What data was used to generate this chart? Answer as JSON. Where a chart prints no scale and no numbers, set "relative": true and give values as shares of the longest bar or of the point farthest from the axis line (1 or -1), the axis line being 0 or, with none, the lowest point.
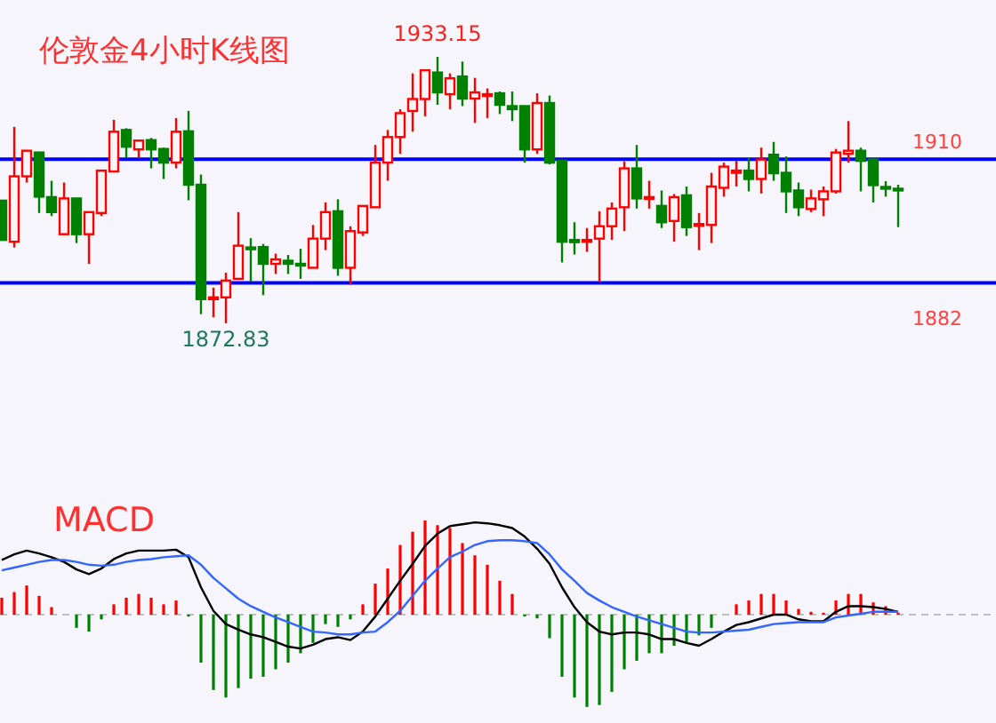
{
  "chart_data": [
    {
      "type": "candlestick",
      "title": "伦敦金4小时K线图",
      "categories": [
        null,
        null,
        null,
        null,
        null,
        null,
        null,
        null,
        null,
        null,
        null,
        null,
        null,
        null,
        null,
        null,
        null,
        null,
        null,
        null,
        null,
        null,
        null,
        null,
        null,
        null,
        null,
        null,
        null,
        null,
        null,
        null,
        null,
        null,
        null,
        null,
        null,
        null,
        null,
        null,
        null,
        null,
        null,
        null,
        null,
        null,
        null,
        null,
        null,
        null,
        null,
        null,
        null,
        null,
        null,
        null,
        null,
        null,
        null,
        null,
        null,
        null,
        null,
        null,
        null,
        null,
        null,
        null,
        null,
        null,
        null,
        null,
        null
      ],
      "ohlc": [
        [
          1900.6,
          1900.6,
          1891.7,
          1891.7
        ],
        [
          1891.3,
          1917.3,
          1890.0,
          1906.1
        ],
        [
          1906.1,
          1911.9,
          1904.7,
          1911.9
        ],
        [
          1911.5,
          1911.5,
          1897.8,
          1901.5
        ],
        [
          1901.4,
          1905.1,
          1897.1,
          1898.0
        ],
        [
          1893.0,
          1904.7,
          1893.0,
          1901.1
        ],
        [
          1901.1,
          1901.1,
          1891.0,
          1893.0
        ],
        [
          1893.0,
          1898.0,
          1886.3,
          1898.0
        ],
        [
          1897.8,
          1907.4,
          1897.1,
          1907.4
        ],
        [
          1907.2,
          1918.9,
          1907.2,
          1916.2
        ],
        [
          1916.6,
          1917.0,
          1910.2,
          1912.8
        ],
        [
          1912.2,
          1914.2,
          1910.2,
          1914.2
        ],
        [
          1914.3,
          1914.8,
          1907.9,
          1912.2
        ],
        [
          1912.3,
          1912.6,
          1905.5,
          1909.2
        ],
        [
          1909.2,
          1919.3,
          1907.9,
          1916.2
        ],
        [
          1916.3,
          1920.9,
          1900.7,
          1904.2
        ],
        [
          1904.2,
          1906.5,
          1874.9,
          1878.3
        ],
        [
          1878.4,
          1880.9,
          1874.2,
          1878.7
        ],
        [
          1878.7,
          1884.3,
          1872.83,
          1882.5
        ],
        [
          1882.9,
          1898.0,
          1882.9,
          1890.4
        ],
        [
          1890.0,
          1892.1,
          1882.3,
          1889.7
        ],
        [
          1890.1,
          1890.8,
          1879.2,
          1886.3
        ],
        [
          1886.3,
          1888.6,
          1884.0,
          1887.3
        ],
        [
          1887.0,
          1888.3,
          1884.0,
          1886.3
        ],
        [
          1886.3,
          1889.7,
          1882.9,
          1886.0
        ],
        [
          1885.4,
          1895.1,
          1885.4,
          1892.0
        ],
        [
          1892.0,
          1900.2,
          1889.4,
          1898.0
        ],
        [
          1898.2,
          1900.9,
          1883.6,
          1885.4
        ],
        [
          1885.4,
          1894.8,
          1881.6,
          1893.7
        ],
        [
          1893.4,
          1899.4,
          1892.6,
          1899.4
        ],
        [
          1899.1,
          1913.2,
          1899.1,
          1909.2
        ],
        [
          1909.2,
          1916.6,
          1905.1,
          1915.0
        ],
        [
          1915.0,
          1921.3,
          1911.2,
          1920.4
        ],
        [
          1920.9,
          1929.4,
          1916.2,
          1923.6
        ],
        [
          1923.6,
          1930.3,
          1919.7,
          1930.1
        ],
        [
          1929.6,
          1933.15,
          1922.3,
          1925.1
        ],
        [
          1924.7,
          1929.4,
          1921.3,
          1928.3
        ],
        [
          1928.7,
          1932.1,
          1922.0,
          1923.7
        ],
        [
          1923.7,
          1928.4,
          1918.2,
          1925.1
        ],
        [
          1924.4,
          1926.0,
          1919.3,
          1924.7
        ],
        [
          1924.9,
          1925.3,
          1920.2,
          1922.3
        ],
        [
          1922.0,
          1925.3,
          1918.6,
          1921.3
        ],
        [
          1922.0,
          1922.0,
          1909.2,
          1912.2
        ],
        [
          1912.2,
          1924.9,
          1911.2,
          1922.7
        ],
        [
          1922.7,
          1924.4,
          1908.8,
          1909.2
        ],
        [
          1909.6,
          1909.6,
          1886.6,
          1891.3
        ],
        [
          1891.7,
          1895.7,
          1888.4,
          1891.2
        ],
        [
          1891.4,
          1894.4,
          1889.0,
          1891.7
        ],
        [
          1892.0,
          1898.2,
          1882.3,
          1894.8
        ],
        [
          1894.8,
          1900.2,
          1891.7,
          1898.8
        ],
        [
          1899.1,
          1909.5,
          1893.7,
          1907.9
        ],
        [
          1907.9,
          1913.2,
          1898.8,
          1901.1
        ],
        [
          1901.1,
          1905.1,
          1898.8,
          1901.4
        ],
        [
          1899.4,
          1902.9,
          1894.4,
          1895.7
        ],
        [
          1896.0,
          1902.1,
          1891.3,
          1901.4
        ],
        [
          1901.8,
          1903.8,
          1892.6,
          1894.6
        ],
        [
          1895.1,
          1897.8,
          1889.4,
          1895.3
        ],
        [
          1895.1,
          1906.9,
          1891.0,
          1903.8
        ],
        [
          1903.5,
          1909.2,
          1901.5,
          1908.3
        ],
        [
          1906.9,
          1909.6,
          1903.8,
          1907.4
        ],
        [
          1907.4,
          1910.2,
          1902.7,
          1905.5
        ],
        [
          1905.5,
          1912.6,
          1902.2,
          1909.9
        ],
        [
          1911.0,
          1913.9,
          1905.1,
          1906.8
        ],
        [
          1906.9,
          1910.6,
          1897.8,
          1902.7
        ],
        [
          1902.9,
          1904.7,
          1897.1,
          1899.1
        ],
        [
          1898.7,
          1903.1,
          1898.0,
          1901.1
        ],
        [
          1900.9,
          1903.8,
          1897.1,
          1902.7
        ],
        [
          1902.7,
          1912.3,
          1902.2,
          1911.5
        ],
        [
          1911.2,
          1918.6,
          1909.2,
          1911.9
        ],
        [
          1911.9,
          1912.6,
          1902.7,
          1909.6
        ],
        [
          1909.9,
          1910.2,
          1900.2,
          1904.1
        ],
        [
          1903.7,
          1905.0,
          1901.5,
          1903.3
        ],
        [
          1903.3,
          1904.2,
          1894.6,
          1902.9
        ]
      ],
      "colors": [
        "#008000",
        "#ff0000",
        "#ff0000",
        "#008000",
        "#008000",
        "#ff0000",
        "#008000",
        "#ff0000",
        "#ff0000",
        "#ff0000",
        "#008000",
        "#ff0000",
        "#008000",
        "#008000",
        "#ff0000",
        "#008000",
        "#008000",
        "#ff0000",
        "#ff0000",
        "#ff0000",
        "#008000",
        "#008000",
        "#ff0000",
        "#008000",
        "#008000",
        "#ff0000",
        "#ff0000",
        "#008000",
        "#ff0000",
        "#ff0000",
        "#ff0000",
        "#ff0000",
        "#ff0000",
        "#ff0000",
        "#ff0000",
        "#008000",
        "#ff0000",
        "#008000",
        "#ff0000",
        "#ff0000",
        "#008000",
        "#008000",
        "#008000",
        "#ff0000",
        "#008000",
        "#008000",
        "#008000",
        "#ff0000",
        "#ff0000",
        "#ff0000",
        "#ff0000",
        "#008000",
        "#ff0000",
        "#008000",
        "#ff0000",
        "#008000",
        "#ff0000",
        "#ff0000",
        "#ff0000",
        "#ff0000",
        "#008000",
        "#ff0000",
        "#008000",
        "#008000",
        "#008000",
        "#ff0000",
        "#ff0000",
        "#ff0000",
        "#ff0000",
        "#008000",
        "#008000",
        "#008000",
        "#008000"
      ],
      "ref_lines": [
        {
          "axis": "y",
          "value": 1910,
          "label": "1910",
          "color": "#0000ff"
        },
        {
          "axis": "y",
          "value": 1882,
          "label": "1882",
          "color": "#0000ff"
        }
      ],
      "annotations": [
        {
          "text": "1933.15",
          "y": 1933.15
        },
        {
          "text": "1872.83",
          "y": 1872.83
        }
      ]
    },
    {
      "type": "bar",
      "title": "MACD",
      "relative": true,
      "ref_lines": [
        {
          "axis": "y",
          "value": 0,
          "color": "#c0c0c0",
          "line_style": "dashed"
        }
      ],
      "categories": [
        null,
        null,
        null,
        null,
        null,
        null,
        null,
        null,
        null,
        null,
        null,
        null,
        null,
        null,
        null,
        null,
        null,
        null,
        null,
        null,
        null,
        null,
        null,
        null,
        null,
        null,
        null,
        null,
        null,
        null,
        null,
        null,
        null,
        null,
        null,
        null,
        null,
        null,
        null,
        null,
        null,
        null,
        null,
        null,
        null,
        null,
        null,
        null,
        null,
        null,
        null,
        null,
        null,
        null,
        null,
        null,
        null,
        null,
        null,
        null,
        null,
        null,
        null,
        null,
        null,
        null,
        null,
        null,
        null,
        null,
        null,
        null,
        null
      ],
      "series": [
        {
          "type": "bar",
          "values": [
            0.18,
            0.24,
            0.31,
            0.2,
            0.08,
            0,
            -0.14,
            -0.18,
            -0.05,
            0.11,
            0.18,
            0.22,
            0.18,
            0.11,
            0.15,
            -0.02,
            -0.51,
            -0.8,
            -0.88,
            -0.78,
            -0.68,
            -0.66,
            -0.58,
            -0.51,
            -0.41,
            -0.3,
            -0.1,
            -0.13,
            -0.05,
            0.11,
            0.33,
            0.49,
            0.74,
            0.88,
            1,
            0.95,
            0.92,
            0.76,
            0.63,
            0.53,
            0.36,
            0.22,
            -0.02,
            -0.04,
            -0.25,
            -0.66,
            -0.88,
            -0.98,
            -0.96,
            -0.82,
            -0.58,
            -0.49,
            -0.41,
            -0.41,
            -0.33,
            -0.3,
            -0.22,
            -0.14,
            0,
            0.11,
            0.15,
            0.22,
            0.22,
            0.15,
            0.06,
            0.03,
            0.02,
            0.15,
            0.22,
            0.22,
            0.13,
            0.09,
            0.02
          ],
          "colors": [
            "#ff0000",
            "#ff0000",
            "#ff0000",
            "#ff0000",
            "#ff0000",
            "#ff0000",
            "#008000",
            "#008000",
            "#008000",
            "#ff0000",
            "#ff0000",
            "#ff0000",
            "#ff0000",
            "#ff0000",
            "#ff0000",
            "#008000",
            "#008000",
            "#008000",
            "#008000",
            "#008000",
            "#008000",
            "#008000",
            "#008000",
            "#008000",
            "#008000",
            "#008000",
            "#008000",
            "#008000",
            "#008000",
            "#ff0000",
            "#ff0000",
            "#ff0000",
            "#ff0000",
            "#ff0000",
            "#ff0000",
            "#ff0000",
            "#ff0000",
            "#ff0000",
            "#ff0000",
            "#ff0000",
            "#ff0000",
            "#ff0000",
            "#008000",
            "#008000",
            "#008000",
            "#008000",
            "#008000",
            "#008000",
            "#008000",
            "#008000",
            "#008000",
            "#008000",
            "#008000",
            "#008000",
            "#008000",
            "#008000",
            "#008000",
            "#008000",
            "#ff0000",
            "#ff0000",
            "#ff0000",
            "#ff0000",
            "#ff0000",
            "#ff0000",
            "#ff0000",
            "#ff0000",
            "#ff0000",
            "#ff0000",
            "#ff0000",
            "#ff0000",
            "#ff0000",
            "#ff0000",
            "#ff0000"
          ]
        },
        {
          "type": "line",
          "color": "#000000",
          "values": [
            0.58,
            0.64,
            0.68,
            0.65,
            0.61,
            0.56,
            0.48,
            0.43,
            0.49,
            0.59,
            0.65,
            0.68,
            0.68,
            0.68,
            0.69,
            0.61,
            0.29,
            0.04,
            -0.1,
            -0.16,
            -0.21,
            -0.24,
            -0.29,
            -0.34,
            -0.36,
            -0.32,
            -0.26,
            -0.24,
            -0.27,
            -0.18,
            -0.02,
            0.17,
            0.36,
            0.54,
            0.73,
            0.86,
            0.94,
            0.96,
            0.98,
            0.97,
            0.95,
            0.92,
            0.83,
            0.7,
            0.54,
            0.29,
            0.08,
            -0.08,
            -0.18,
            -0.21,
            -0.19,
            -0.19,
            -0.21,
            -0.26,
            -0.26,
            -0.3,
            -0.33,
            -0.26,
            -0.18,
            -0.11,
            -0.08,
            -0.04,
            0,
            0,
            -0.05,
            -0.07,
            -0.07,
            0.03,
            0.09,
            0.09,
            0.08,
            0.06,
            0.03
          ]
        },
        {
          "type": "line",
          "color": "#3366ff",
          "values": [
            0.47,
            0.5,
            0.53,
            0.56,
            0.58,
            0.58,
            0.56,
            0.53,
            0.52,
            0.53,
            0.56,
            0.58,
            0.59,
            0.61,
            0.62,
            0.63,
            0.53,
            0.39,
            0.28,
            0.17,
            0.09,
            0.03,
            -0.03,
            -0.08,
            -0.13,
            -0.18,
            -0.19,
            -0.21,
            -0.21,
            -0.19,
            -0.18,
            -0.08,
            0.04,
            0.2,
            0.36,
            0.49,
            0.61,
            0.67,
            0.74,
            0.78,
            0.79,
            0.79,
            0.78,
            0.76,
            0.64,
            0.48,
            0.36,
            0.23,
            0.15,
            0.08,
            0.03,
            -0.02,
            -0.06,
            -0.1,
            -0.14,
            -0.18,
            -0.19,
            -0.19,
            -0.18,
            -0.17,
            -0.16,
            -0.13,
            -0.1,
            -0.09,
            -0.08,
            -0.08,
            -0.08,
            -0.03,
            -0.01,
            0.01,
            0.03,
            0.03,
            0.03
          ]
        }
      ]
    }
  ]
}
